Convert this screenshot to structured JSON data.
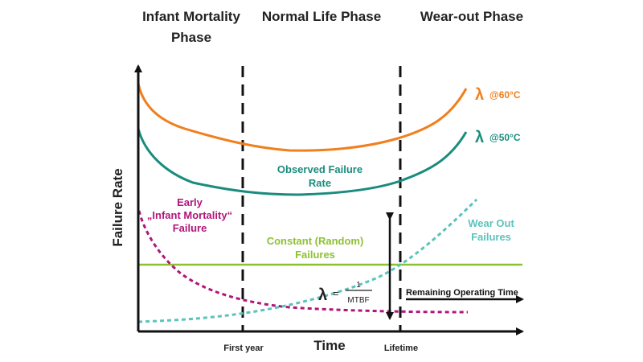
{
  "phases": {
    "infant_line1": "Infant Mortality",
    "infant_line2": "Phase",
    "normal": "Normal Life Phase",
    "wearout": "Wear-out Phase"
  },
  "axes": {
    "y_label": "Failure Rate",
    "x_label": "Time",
    "tick_first_year": "First year",
    "tick_lifetime": "Lifetime"
  },
  "curves": {
    "lambda_symbol": "λ",
    "top_temp": "@60°C",
    "bottom_temp": "@50°C",
    "observed_line1": "Observed Failure",
    "observed_line2": "Rate",
    "early_line1": "Early",
    "early_line2": "„Infant Mortality“",
    "early_line3": "Failure",
    "constant_line1": "Constant (Random)",
    "constant_line2": "Failures",
    "wearout_line1": "Wear Out",
    "wearout_line2": "Failures"
  },
  "formula": {
    "lambda": "λ",
    "equals": "=",
    "numerator": "1",
    "denominator": "MTBF"
  },
  "remaining": "Remaining Operating Time",
  "colors": {
    "orange": "#F07F1E",
    "teal": "#1A8C7D",
    "magenta": "#B0157A",
    "green": "#8DC133",
    "light_teal": "#5BC3BA",
    "black": "#111111"
  }
}
